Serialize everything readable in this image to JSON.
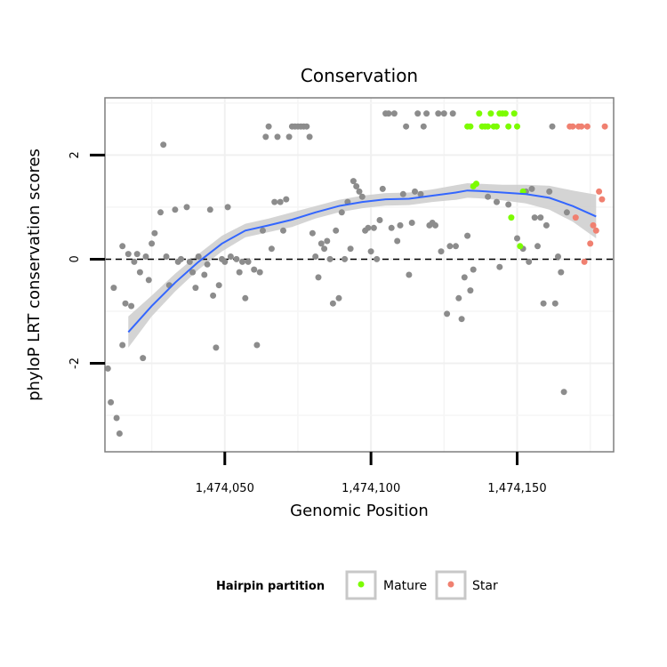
{
  "chart_data": {
    "type": "scatter",
    "title": "Conservation",
    "xlabel": "Genomic Position",
    "ylabel": "phyloP LRT conservation scores",
    "xlim": [
      1474009,
      1474183
    ],
    "ylim": [
      -3.7,
      3.1
    ],
    "x_ticks": [
      {
        "value": 1474050,
        "label": "1,474,050"
      },
      {
        "value": 1474100,
        "label": "1,474,100"
      },
      {
        "value": 1474150,
        "label": "1,474,150"
      }
    ],
    "y_ticks": [
      {
        "value": -2,
        "label": "-2"
      },
      {
        "value": 0,
        "label": "0"
      },
      {
        "value": 2,
        "label": "2"
      }
    ],
    "x_minor_grid": [
      1474025,
      1474075,
      1474125,
      1474175
    ],
    "y_minor_grid": [
      -3,
      -1,
      1,
      3
    ],
    "reference_line": {
      "y": 0,
      "style": "dashed"
    },
    "grid": true,
    "legend": {
      "title": "Hairpin partition",
      "placement": "bottom",
      "entries": [
        {
          "label": "Mature",
          "color": "#7cfc00"
        },
        {
          "label": "Star",
          "color": "#f08070"
        }
      ]
    },
    "colors": {
      "other": "#8c8c8c",
      "Mature": "#7cfc00",
      "Star": "#f08070",
      "smooth": "#3366ff",
      "band": "#cccccc"
    },
    "smooth": {
      "method": "loess",
      "x": [
        1474017,
        1474025,
        1474033,
        1474041,
        1474049,
        1474057,
        1474065,
        1474073,
        1474081,
        1474089,
        1474097,
        1474105,
        1474113,
        1474121,
        1474129,
        1474133,
        1474137,
        1474145,
        1474153,
        1474161,
        1474169,
        1474177
      ],
      "y": [
        -1.4,
        -0.9,
        -0.45,
        -0.05,
        0.3,
        0.55,
        0.65,
        0.76,
        0.9,
        1.02,
        1.1,
        1.15,
        1.16,
        1.22,
        1.28,
        1.32,
        1.31,
        1.28,
        1.25,
        1.18,
        1.02,
        0.82
      ],
      "lower": [
        -1.7,
        -1.1,
        -0.62,
        -0.2,
        0.15,
        0.42,
        0.52,
        0.62,
        0.78,
        0.9,
        0.98,
        1.03,
        1.04,
        1.1,
        1.14,
        1.18,
        1.17,
        1.13,
        1.07,
        0.95,
        0.72,
        0.4
      ],
      "upper": [
        -1.1,
        -0.7,
        -0.28,
        0.1,
        0.45,
        0.68,
        0.78,
        0.9,
        1.02,
        1.14,
        1.22,
        1.27,
        1.28,
        1.34,
        1.42,
        1.46,
        1.45,
        1.43,
        1.43,
        1.41,
        1.32,
        1.24
      ]
    },
    "series": [
      {
        "group": "other",
        "points": [
          [
            1474010,
            -2.1
          ],
          [
            1474011,
            -2.75
          ],
          [
            1474012,
            -0.55
          ],
          [
            1474013,
            -3.05
          ],
          [
            1474014,
            -3.35
          ],
          [
            1474015,
            -1.65
          ],
          [
            1474015,
            0.25
          ],
          [
            1474016,
            -0.85
          ],
          [
            1474017,
            0.1
          ],
          [
            1474018,
            -0.9
          ],
          [
            1474019,
            -0.05
          ],
          [
            1474020,
            0.1
          ],
          [
            1474021,
            -0.25
          ],
          [
            1474022,
            -1.9
          ],
          [
            1474023,
            0.05
          ],
          [
            1474024,
            -0.4
          ],
          [
            1474025,
            0.3
          ],
          [
            1474026,
            0.5
          ],
          [
            1474028,
            0.9
          ],
          [
            1474029,
            2.2
          ],
          [
            1474030,
            0.05
          ],
          [
            1474031,
            -0.5
          ],
          [
            1474033,
            0.95
          ],
          [
            1474034,
            -0.05
          ],
          [
            1474035,
            0.0
          ],
          [
            1474037,
            1.0
          ],
          [
            1474038,
            -0.05
          ],
          [
            1474039,
            -0.25
          ],
          [
            1474040,
            -0.55
          ],
          [
            1474041,
            0.05
          ],
          [
            1474043,
            -0.3
          ],
          [
            1474044,
            -0.1
          ],
          [
            1474045,
            0.95
          ],
          [
            1474046,
            -0.7
          ],
          [
            1474047,
            -1.7
          ],
          [
            1474048,
            -0.5
          ],
          [
            1474049,
            0.0
          ],
          [
            1474050,
            -0.05
          ],
          [
            1474051,
            1.0
          ],
          [
            1474052,
            0.05
          ],
          [
            1474054,
            0.0
          ],
          [
            1474055,
            -0.25
          ],
          [
            1474056,
            -0.05
          ],
          [
            1474057,
            -0.75
          ],
          [
            1474058,
            -0.05
          ],
          [
            1474060,
            -0.2
          ],
          [
            1474061,
            -1.65
          ],
          [
            1474062,
            -0.25
          ],
          [
            1474063,
            0.55
          ],
          [
            1474064,
            2.35
          ],
          [
            1474065,
            2.55
          ],
          [
            1474066,
            0.2
          ],
          [
            1474067,
            1.1
          ],
          [
            1474068,
            2.35
          ],
          [
            1474069,
            1.1
          ],
          [
            1474070,
            0.55
          ],
          [
            1474071,
            1.15
          ],
          [
            1474072,
            2.35
          ],
          [
            1474073,
            2.55
          ],
          [
            1474074,
            2.55
          ],
          [
            1474075,
            2.55
          ],
          [
            1474076,
            2.55
          ],
          [
            1474077,
            2.55
          ],
          [
            1474078,
            2.55
          ],
          [
            1474079,
            2.35
          ],
          [
            1474080,
            0.5
          ],
          [
            1474081,
            0.05
          ],
          [
            1474082,
            -0.35
          ],
          [
            1474083,
            0.3
          ],
          [
            1474084,
            0.2
          ],
          [
            1474085,
            0.35
          ],
          [
            1474086,
            0.0
          ],
          [
            1474087,
            -0.85
          ],
          [
            1474088,
            0.55
          ],
          [
            1474089,
            -0.75
          ],
          [
            1474090,
            0.9
          ],
          [
            1474091,
            0.0
          ],
          [
            1474092,
            1.1
          ],
          [
            1474093,
            0.2
          ],
          [
            1474094,
            1.5
          ],
          [
            1474095,
            1.4
          ],
          [
            1474096,
            1.3
          ],
          [
            1474097,
            1.2
          ],
          [
            1474098,
            0.55
          ],
          [
            1474099,
            0.6
          ],
          [
            1474100,
            0.15
          ],
          [
            1474101,
            0.6
          ],
          [
            1474102,
            0.0
          ],
          [
            1474103,
            0.75
          ],
          [
            1474104,
            1.35
          ],
          [
            1474105,
            2.8
          ],
          [
            1474106,
            2.8
          ],
          [
            1474107,
            0.6
          ],
          [
            1474108,
            2.8
          ],
          [
            1474109,
            0.35
          ],
          [
            1474110,
            0.65
          ],
          [
            1474111,
            1.25
          ],
          [
            1474112,
            2.55
          ],
          [
            1474113,
            -0.3
          ],
          [
            1474114,
            0.7
          ],
          [
            1474115,
            1.3
          ],
          [
            1474116,
            2.8
          ],
          [
            1474117,
            1.25
          ],
          [
            1474118,
            2.55
          ],
          [
            1474119,
            2.8
          ],
          [
            1474120,
            0.65
          ],
          [
            1474121,
            0.7
          ],
          [
            1474122,
            0.65
          ],
          [
            1474123,
            2.8
          ],
          [
            1474124,
            0.15
          ],
          [
            1474125,
            2.8
          ],
          [
            1474126,
            -1.05
          ],
          [
            1474127,
            0.25
          ],
          [
            1474128,
            2.8
          ],
          [
            1474129,
            0.25
          ],
          [
            1474130,
            -0.75
          ],
          [
            1474131,
            -1.15
          ],
          [
            1474132,
            -0.35
          ],
          [
            1474133,
            0.45
          ],
          [
            1474134,
            -0.6
          ],
          [
            1474135,
            -0.2
          ],
          [
            1474140,
            1.2
          ],
          [
            1474143,
            1.1
          ],
          [
            1474144,
            -0.15
          ],
          [
            1474147,
            1.05
          ],
          [
            1474150,
            0.4
          ],
          [
            1474152,
            0.2
          ],
          [
            1474153,
            1.3
          ],
          [
            1474154,
            -0.05
          ],
          [
            1474155,
            1.35
          ],
          [
            1474156,
            0.8
          ],
          [
            1474157,
            0.25
          ],
          [
            1474158,
            0.8
          ],
          [
            1474159,
            -0.85
          ],
          [
            1474160,
            0.65
          ],
          [
            1474161,
            1.3
          ],
          [
            1474162,
            2.55
          ],
          [
            1474163,
            -0.85
          ],
          [
            1474164,
            0.05
          ],
          [
            1474165,
            -0.25
          ],
          [
            1474166,
            -2.55
          ],
          [
            1474167,
            0.9
          ]
        ]
      },
      {
        "group": "Mature",
        "points": [
          [
            1474133,
            2.55
          ],
          [
            1474134,
            2.55
          ],
          [
            1474135,
            1.4
          ],
          [
            1474136,
            1.45
          ],
          [
            1474137,
            2.8
          ],
          [
            1474138,
            2.55
          ],
          [
            1474139,
            2.55
          ],
          [
            1474140,
            2.55
          ],
          [
            1474141,
            2.8
          ],
          [
            1474142,
            2.55
          ],
          [
            1474143,
            2.55
          ],
          [
            1474144,
            2.8
          ],
          [
            1474145,
            2.8
          ],
          [
            1474146,
            2.8
          ],
          [
            1474147,
            2.55
          ],
          [
            1474148,
            0.8
          ],
          [
            1474149,
            2.8
          ],
          [
            1474150,
            2.55
          ],
          [
            1474151,
            0.25
          ],
          [
            1474152,
            1.3
          ]
        ]
      },
      {
        "group": "Star",
        "points": [
          [
            1474168,
            2.55
          ],
          [
            1474169,
            2.55
          ],
          [
            1474170,
            0.8
          ],
          [
            1474171,
            2.55
          ],
          [
            1474172,
            2.55
          ],
          [
            1474173,
            -0.05
          ],
          [
            1474174,
            2.55
          ],
          [
            1474175,
            0.3
          ],
          [
            1474176,
            0.65
          ],
          [
            1474177,
            0.55
          ],
          [
            1474178,
            1.3
          ],
          [
            1474179,
            1.15
          ],
          [
            1474180,
            2.55
          ]
        ]
      }
    ]
  }
}
